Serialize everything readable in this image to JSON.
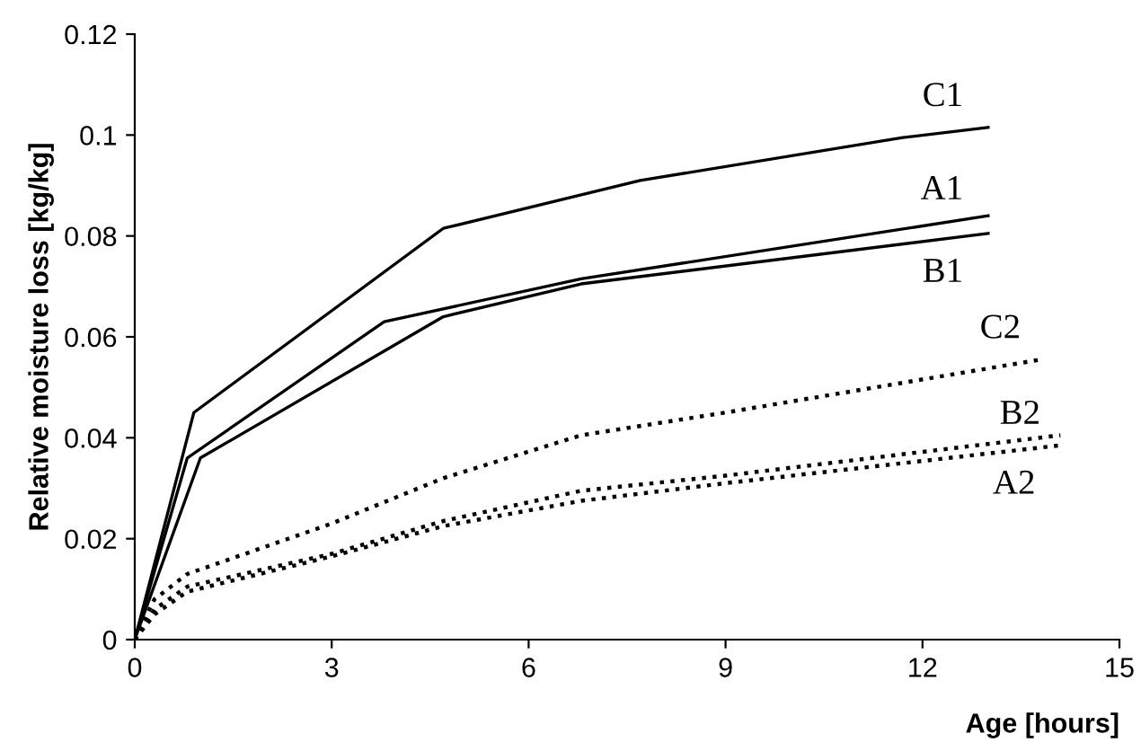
{
  "chart_data": {
    "type": "line",
    "xlabel": "Age [hours]",
    "ylabel": "Relative moisture loss [kg/kg]",
    "xlim": [
      0,
      15
    ],
    "xticks": [
      0,
      3,
      6,
      9,
      12,
      15
    ],
    "ylim": [
      0,
      0.12
    ],
    "yticks": [
      0,
      0.02,
      0.04,
      0.06,
      0.08,
      0.1,
      0.12
    ],
    "grid": false,
    "legend": false,
    "marker": "none",
    "series": [
      {
        "name": "C1",
        "color": "#000000",
        "line_style": "solid",
        "x": [
          0,
          0.9,
          4.7,
          7.7,
          11.7,
          13
        ],
        "values": [
          0,
          0.045,
          0.0815,
          0.091,
          0.0995,
          0.1015
        ]
      },
      {
        "name": "A1",
        "color": "#000000",
        "line_style": "solid",
        "x": [
          0,
          0.8,
          3.8,
          6.8,
          13
        ],
        "values": [
          0,
          0.036,
          0.063,
          0.0715,
          0.084
        ]
      },
      {
        "name": "B1",
        "color": "#000000",
        "line_style": "solid",
        "x": [
          0,
          1.0,
          4.7,
          6.8,
          13
        ],
        "values": [
          0,
          0.036,
          0.064,
          0.0705,
          0.0805
        ]
      },
      {
        "name": "C2",
        "color": "#000000",
        "line_style": "dotted",
        "x": [
          0,
          0.3,
          0.8,
          3,
          4.7,
          6.8,
          9,
          13.8
        ],
        "values": [
          0,
          0.008,
          0.013,
          0.023,
          0.032,
          0.0405,
          0.045,
          0.0555
        ]
      },
      {
        "name": "B2",
        "color": "#000000",
        "line_style": "dotted",
        "x": [
          0,
          0.3,
          0.8,
          3,
          4.7,
          6.8,
          9,
          14.1
        ],
        "values": [
          0,
          0.006,
          0.0105,
          0.017,
          0.0235,
          0.0295,
          0.0325,
          0.0405
        ]
      },
      {
        "name": "A2",
        "color": "#000000",
        "line_style": "dotted",
        "x": [
          0,
          0.3,
          0.8,
          3,
          4.7,
          6.8,
          9,
          14.1
        ],
        "values": [
          0,
          0.005,
          0.0095,
          0.0165,
          0.0225,
          0.0275,
          0.031,
          0.0385
        ]
      }
    ]
  }
}
